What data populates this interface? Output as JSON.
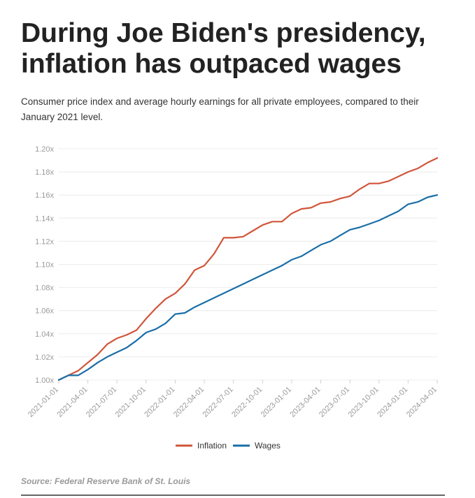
{
  "title_lines": [
    "During Joe Biden's presidency,",
    "inflation has outpaced wages"
  ],
  "subtitle": "Consumer price index and average hourly earnings for all private employees, compared to their January 2021 level.",
  "source": "Source: Federal Reserve Bank of St. Louis",
  "chart_data": {
    "type": "line",
    "title": "During Joe Biden's presidency, inflation has outpaced wages",
    "xlabel": "",
    "ylabel": "",
    "ylim": [
      1.0,
      1.2
    ],
    "grid": true,
    "legend_position": "bottom-center",
    "y_ticks": [
      "1.00x",
      "1.02x",
      "1.04x",
      "1.06x",
      "1.08x",
      "1.10x",
      "1.12x",
      "1.14x",
      "1.16x",
      "1.18x",
      "1.20x"
    ],
    "x_tick_labels": [
      "2021-01-01",
      "2021-04-01",
      "2021-07-01",
      "2021-10-01",
      "2022-01-01",
      "2022-04-01",
      "2022-07-01",
      "2022-10-01",
      "2023-01-01",
      "2023-04-01",
      "2023-07-01",
      "2023-10-01",
      "2024-01-01",
      "2024-04-01"
    ],
    "x_months": [
      "2021-01",
      "2021-02",
      "2021-03",
      "2021-04",
      "2021-05",
      "2021-06",
      "2021-07",
      "2021-08",
      "2021-09",
      "2021-10",
      "2021-11",
      "2021-12",
      "2022-01",
      "2022-02",
      "2022-03",
      "2022-04",
      "2022-05",
      "2022-06",
      "2022-07",
      "2022-08",
      "2022-09",
      "2022-10",
      "2022-11",
      "2022-12",
      "2023-01",
      "2023-02",
      "2023-03",
      "2023-04",
      "2023-05",
      "2023-06",
      "2023-07",
      "2023-08",
      "2023-09",
      "2023-10",
      "2023-11",
      "2023-12",
      "2024-01",
      "2024-02",
      "2024-03",
      "2024-04"
    ],
    "series": [
      {
        "name": "Inflation",
        "color": "#d1553a",
        "values": [
          1.0,
          1.004,
          1.008,
          1.015,
          1.022,
          1.031,
          1.036,
          1.039,
          1.043,
          1.053,
          1.062,
          1.07,
          1.075,
          1.083,
          1.095,
          1.099,
          1.109,
          1.123,
          1.123,
          1.124,
          1.129,
          1.134,
          1.137,
          1.137,
          1.144,
          1.148,
          1.149,
          1.153,
          1.154,
          1.157,
          1.159,
          1.165,
          1.17,
          1.17,
          1.172,
          1.176,
          1.18,
          1.183,
          1.188,
          1.192
        ]
      },
      {
        "name": "Wages",
        "color": "#1a6ea7",
        "values": [
          1.0,
          1.004,
          1.004,
          1.009,
          1.015,
          1.02,
          1.024,
          1.028,
          1.034,
          1.041,
          1.044,
          1.049,
          1.057,
          1.058,
          1.063,
          1.067,
          1.071,
          1.075,
          1.079,
          1.083,
          1.087,
          1.091,
          1.095,
          1.099,
          1.104,
          1.107,
          1.112,
          1.117,
          1.12,
          1.125,
          1.13,
          1.132,
          1.135,
          1.138,
          1.142,
          1.146,
          1.152,
          1.154,
          1.158,
          1.16
        ]
      }
    ]
  }
}
